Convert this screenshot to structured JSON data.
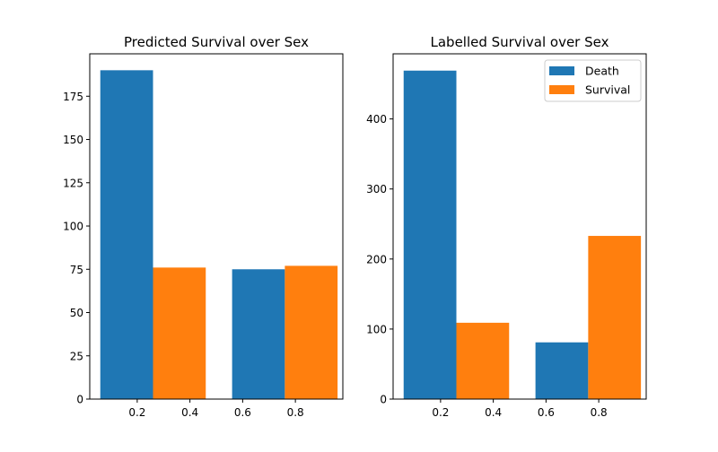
{
  "chart_data": [
    {
      "type": "bar",
      "title": "Predicted Survival over Sex",
      "xlabel": "",
      "ylabel": "",
      "xlim": [
        0.02,
        0.98
      ],
      "ylim": [
        0,
        199.5
      ],
      "xticks": [
        0.2,
        0.4,
        0.6,
        0.8
      ],
      "xtick_labels": [
        "0.2",
        "0.4",
        "0.6",
        "0.8"
      ],
      "yticks": [
        0,
        25,
        50,
        75,
        100,
        125,
        150,
        175
      ],
      "ytick_labels": [
        "0",
        "25",
        "50",
        "75",
        "100",
        "125",
        "150",
        "175"
      ],
      "legend": false,
      "bars": [
        {
          "series": "Death",
          "x0": 0.06,
          "x1": 0.26,
          "value": 190,
          "color": "#1f77b4"
        },
        {
          "series": "Survival",
          "x0": 0.26,
          "x1": 0.46,
          "value": 76,
          "color": "#ff7f0e"
        },
        {
          "series": "Death",
          "x0": 0.56,
          "x1": 0.76,
          "value": 75,
          "color": "#1f77b4"
        },
        {
          "series": "Survival",
          "x0": 0.76,
          "x1": 0.96,
          "value": 77,
          "color": "#ff7f0e"
        }
      ]
    },
    {
      "type": "bar",
      "title": "Labelled Survival over Sex",
      "xlabel": "",
      "ylabel": "",
      "xlim": [
        0.02,
        0.98
      ],
      "ylim": [
        0,
        493
      ],
      "xticks": [
        0.2,
        0.4,
        0.6,
        0.8
      ],
      "xtick_labels": [
        "0.2",
        "0.4",
        "0.6",
        "0.8"
      ],
      "yticks": [
        0,
        100,
        200,
        300,
        400
      ],
      "ytick_labels": [
        "0",
        "100",
        "200",
        "300",
        "400"
      ],
      "legend": true,
      "legend_position": "top-right",
      "series": [
        {
          "name": "Death",
          "color": "#1f77b4"
        },
        {
          "name": "Survival",
          "color": "#ff7f0e"
        }
      ],
      "bars": [
        {
          "series": "Death",
          "x0": 0.06,
          "x1": 0.26,
          "value": 469,
          "color": "#1f77b4"
        },
        {
          "series": "Survival",
          "x0": 0.26,
          "x1": 0.46,
          "value": 109,
          "color": "#ff7f0e"
        },
        {
          "series": "Death",
          "x0": 0.56,
          "x1": 0.76,
          "value": 81,
          "color": "#1f77b4"
        },
        {
          "series": "Survival",
          "x0": 0.76,
          "x1": 0.96,
          "value": 233,
          "color": "#ff7f0e"
        }
      ]
    }
  ]
}
